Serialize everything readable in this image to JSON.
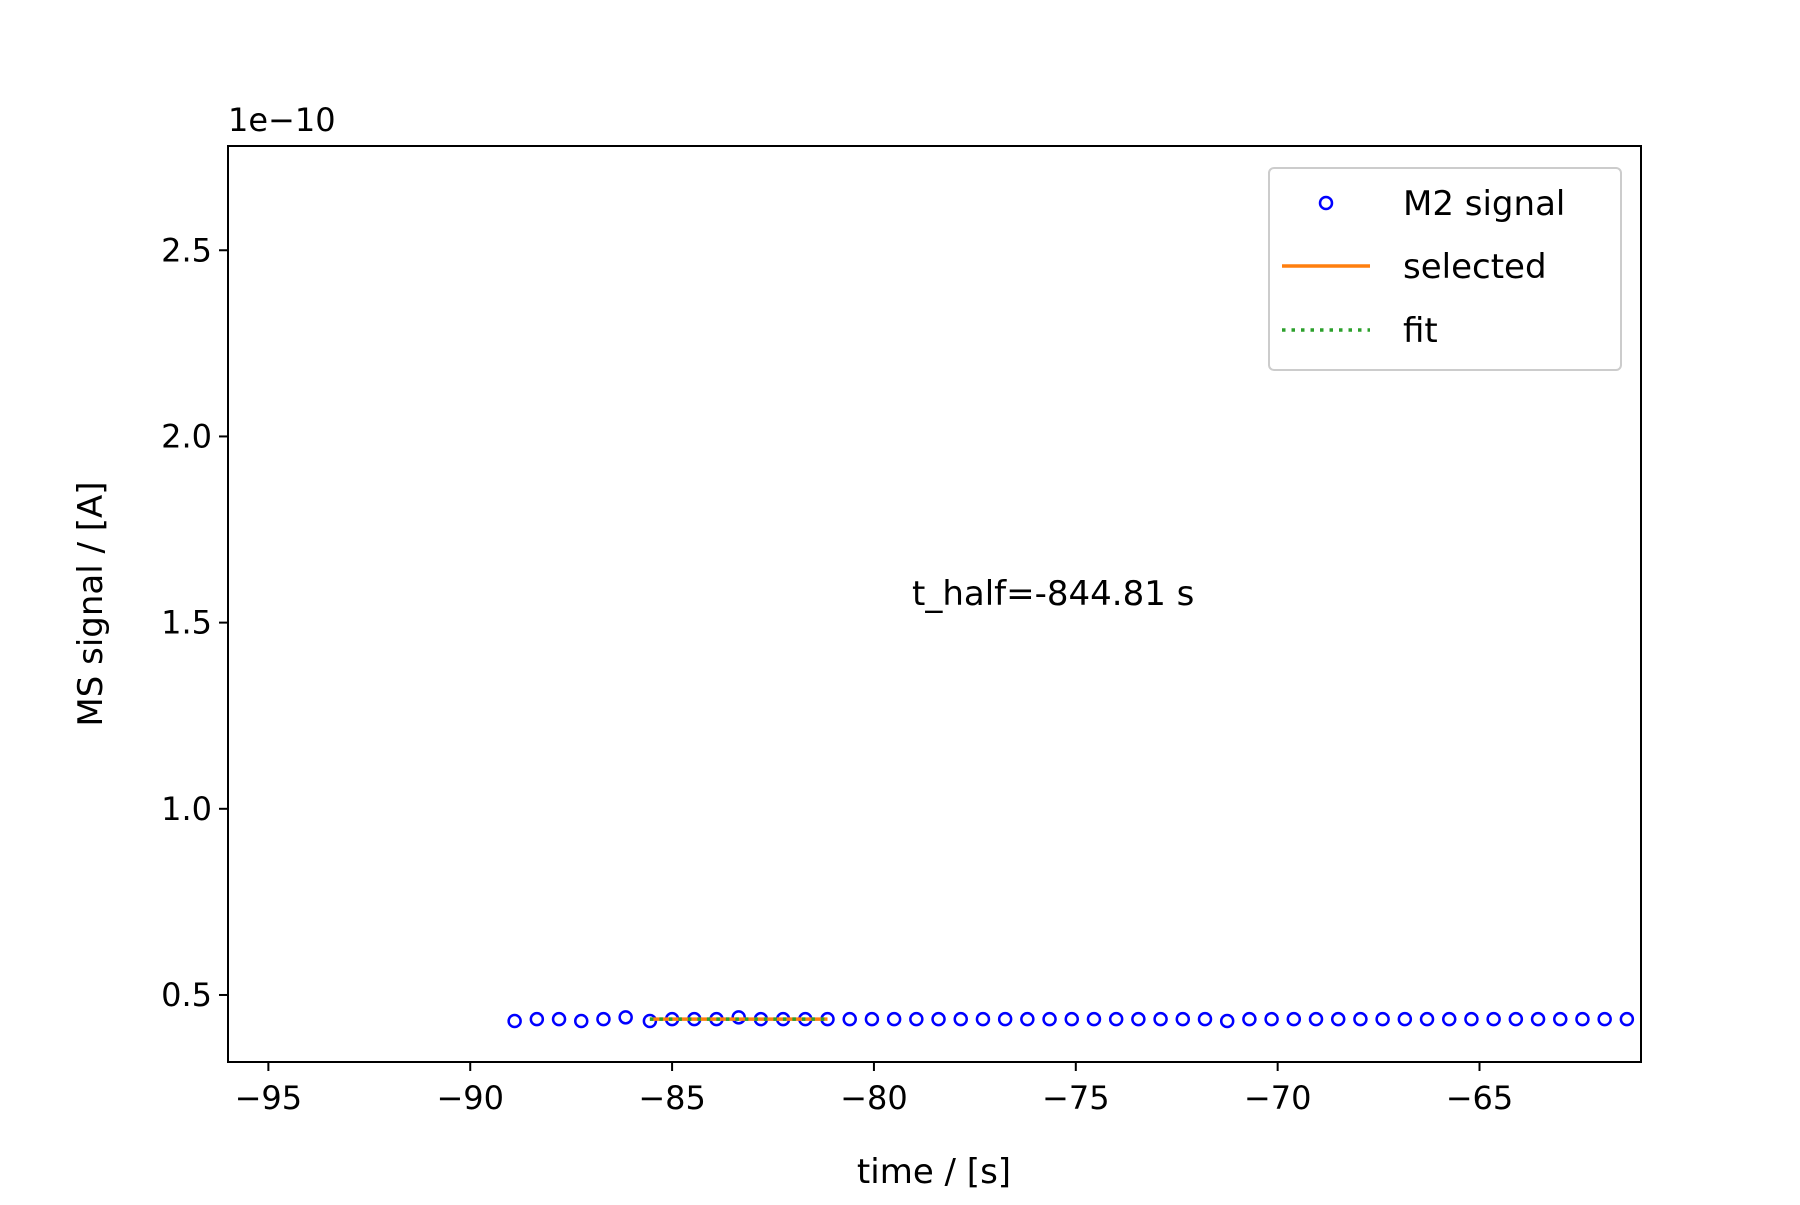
{
  "chart_data": {
    "type": "scatter",
    "xlabel": "time / [s]",
    "ylabel": "MS signal / [A]",
    "y_offset_label": "1e−10",
    "xlim": [
      -96,
      -61
    ],
    "ylim": [
      0.32,
      2.78
    ],
    "x_ticks": [
      -95,
      -90,
      -85,
      -80,
      -75,
      -70,
      -65
    ],
    "x_tick_labels": [
      "−95",
      "−90",
      "−85",
      "−80",
      "−75",
      "−70",
      "−65"
    ],
    "y_ticks": [
      0.5,
      1.0,
      1.5,
      2.0,
      2.5
    ],
    "y_tick_labels": [
      "0.5",
      "1.0",
      "1.5",
      "2.0",
      "2.5"
    ],
    "grid": false,
    "legend_position": "top-right",
    "annotation": "t_half=-844.81 s",
    "series": [
      {
        "name": "M2 signal",
        "kind": "scatter",
        "marker": "open-circle",
        "color": "#0000ff",
        "x": [
          -88.9,
          -88.35,
          -87.8,
          -87.25,
          -86.7,
          -86.15,
          -85.55,
          -85.0,
          -84.45,
          -83.9,
          -83.35,
          -82.8,
          -82.25,
          -81.7,
          -81.15,
          -80.6,
          -80.05,
          -79.5,
          -78.95,
          -78.4,
          -77.85,
          -77.3,
          -76.75,
          -76.2,
          -75.65,
          -75.1,
          -74.55,
          -74.0,
          -73.45,
          -72.9,
          -72.35,
          -71.8,
          -71.25,
          -70.7,
          -70.15,
          -69.6,
          -69.05,
          -68.5,
          -67.95,
          -67.4,
          -66.85,
          -66.3,
          -65.75,
          -65.2,
          -64.65,
          -64.1,
          -63.55,
          -63.0,
          -62.45,
          -61.9,
          -61.35
        ],
        "y": [
          0.43,
          0.435,
          0.435,
          0.43,
          0.435,
          0.44,
          0.43,
          0.435,
          0.435,
          0.435,
          0.44,
          0.435,
          0.435,
          0.435,
          0.435,
          0.435,
          0.435,
          0.435,
          0.435,
          0.435,
          0.435,
          0.435,
          0.435,
          0.435,
          0.435,
          0.435,
          0.435,
          0.435,
          0.435,
          0.435,
          0.435,
          0.435,
          0.43,
          0.435,
          0.435,
          0.435,
          0.435,
          0.435,
          0.435,
          0.435,
          0.435,
          0.435,
          0.435,
          0.435,
          0.435,
          0.435,
          0.435,
          0.435,
          0.435,
          0.435,
          0.435
        ]
      },
      {
        "name": "selected",
        "kind": "line",
        "style": "solid",
        "color": "#ff7f0e",
        "x": [
          -85.55,
          -81.15
        ],
        "y": [
          0.435,
          0.435
        ]
      },
      {
        "name": "fit",
        "kind": "line",
        "style": "dotted",
        "color": "#2ca02c",
        "x": [
          -85.55,
          -81.15
        ],
        "y": [
          0.435,
          0.435
        ]
      }
    ]
  }
}
